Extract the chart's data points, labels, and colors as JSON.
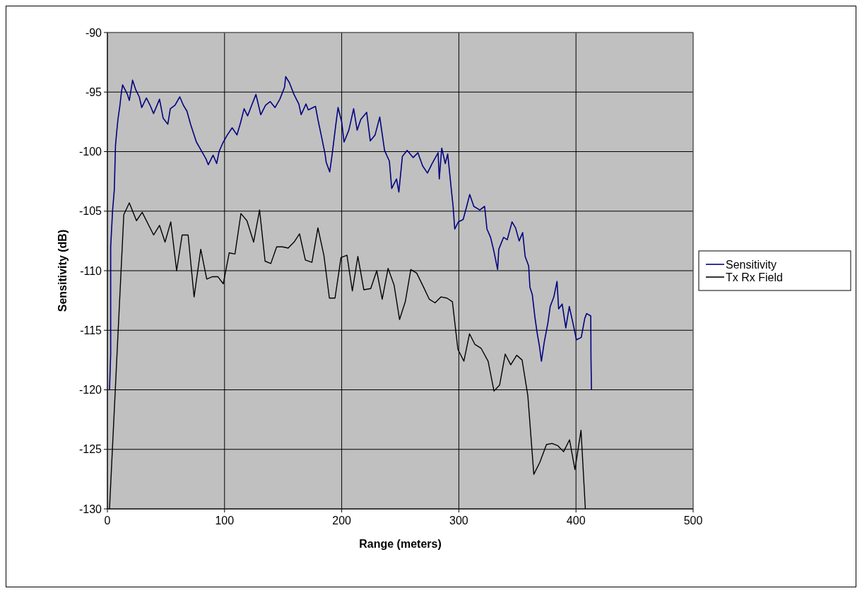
{
  "chart_data": {
    "type": "line",
    "xlabel": "Range (meters)",
    "ylabel": "Sensitivity (dB)",
    "xlim": [
      0,
      500
    ],
    "xticks": [
      0,
      100,
      200,
      300,
      400,
      500
    ],
    "ylim": [
      -130,
      -90
    ],
    "yticks": [
      -130,
      -125,
      -120,
      -115,
      -110,
      -105,
      -100,
      -95,
      -90
    ],
    "grid": true,
    "legend": "right",
    "marker": "none",
    "line_style": "solid",
    "series": [
      {
        "name": "Sensitivity",
        "color": "#000080",
        "x": [
          1.8,
          2.8,
          2.8,
          4.4,
          5.9,
          6.9,
          7.9,
          9,
          10.6,
          12,
          13,
          17.1,
          18.7,
          21.5,
          24.2,
          27.2,
          29.3,
          33.3,
          36.4,
          39.4,
          44.5,
          47.6,
          51.6,
          53.7,
          57.7,
          61.8,
          64.8,
          67.9,
          71,
          74,
          76,
          80.1,
          84.1,
          86.1,
          90.2,
          93.3,
          95.3,
          98.4,
          102.4,
          106.5,
          110.6,
          113.6,
          116.7,
          119.7,
          122.8,
          126.8,
          130.9,
          135,
          139,
          143.1,
          147.2,
          151.2,
          152.2,
          155.3,
          159.3,
          163.4,
          165.4,
          169.5,
          171.5,
          177.6,
          179.7,
          182.7,
          185.8,
          186.8,
          189.8,
          191.9,
          194.9,
          196.9,
          200,
          202,
          206.1,
          210.2,
          213.2,
          216.3,
          221.3,
          224.4,
          228.5,
          232.5,
          236.6,
          240.7,
          242.7,
          246.8,
          248.8,
          251.8,
          255.9,
          261,
          265.1,
          269.1,
          273.2,
          277.2,
          282.3,
          283.3,
          285.4,
          288.4,
          290.5,
          293.5,
          295.1,
          296.5,
          299.6,
          303.7,
          306.7,
          309.3,
          312.8,
          317.9,
          322,
          324,
          327.1,
          330,
          333.1,
          334.1,
          338.2,
          341.3,
          345.4,
          348.4,
          351.5,
          354.5,
          356.6,
          359.6,
          360.7,
          362.7,
          364.8,
          366.8,
          368.9,
          370.5,
          372.9,
          376,
          378,
          381.1,
          383.8,
          385.2,
          388.2,
          391.3,
          394.3,
          397.4,
          400.4,
          404.5,
          407.5,
          409.1,
          412.6,
          412.7,
          412.8,
          413.2
        ],
        "values": [
          -120,
          -117,
          -108,
          -105,
          -103.2,
          -99.5,
          -98.4,
          -97.3,
          -96.2,
          -95,
          -94.4,
          -95.2,
          -95.7,
          -94,
          -94.8,
          -95.4,
          -96.3,
          -95.5,
          -96.1,
          -96.8,
          -95.6,
          -97.2,
          -97.7,
          -96.4,
          -96.1,
          -95.4,
          -96.1,
          -96.6,
          -97.7,
          -98.6,
          -99.2,
          -99.9,
          -100.6,
          -101.1,
          -100.3,
          -101,
          -100,
          -99.3,
          -98.6,
          -98,
          -98.6,
          -97.6,
          -96.4,
          -97,
          -96.2,
          -95.2,
          -96.9,
          -96.1,
          -95.8,
          -96.3,
          -95.6,
          -94.6,
          -93.7,
          -94.2,
          -95.2,
          -96,
          -96.9,
          -96,
          -96.5,
          -96.2,
          -97.3,
          -98.7,
          -100.2,
          -100.9,
          -101.7,
          -100.2,
          -97.8,
          -96.3,
          -97.5,
          -99.2,
          -98.2,
          -96.4,
          -98.2,
          -97.3,
          -96.7,
          -99.1,
          -98.6,
          -97.1,
          -99.9,
          -100.8,
          -103.1,
          -102.3,
          -103.4,
          -100.4,
          -99.9,
          -100.5,
          -100.1,
          -101.2,
          -101.8,
          -101,
          -100.1,
          -102.3,
          -99.7,
          -101,
          -100.2,
          -103.1,
          -104.6,
          -106.5,
          -105.9,
          -105.7,
          -104.6,
          -103.6,
          -104.6,
          -104.9,
          -104.6,
          -106.5,
          -107.2,
          -108.4,
          -109.9,
          -108.2,
          -107.2,
          -107.4,
          -105.9,
          -106.4,
          -107.5,
          -106.8,
          -108.8,
          -109.6,
          -111.4,
          -112,
          -113.8,
          -115.2,
          -116.4,
          -117.6,
          -116,
          -114.4,
          -113,
          -112.2,
          -110.9,
          -113.2,
          -112.8,
          -114.8,
          -113,
          -114.4,
          -115.8,
          -115.6,
          -114,
          -113.6,
          -113.8,
          -115.2,
          -117.3,
          -120
        ]
      },
      {
        "name": "Tx Rx Field",
        "color": "#000000",
        "x": [
          1.8,
          14,
          18.7,
          24.8,
          29.7,
          39.5,
          44.5,
          49.2,
          54.1,
          59.1,
          63.8,
          68.9,
          74,
          79.7,
          84.8,
          89.8,
          94.3,
          98.9,
          104,
          108.9,
          114,
          119.1,
          124.8,
          129.9,
          134.6,
          139.5,
          144.5,
          149.6,
          154.3,
          159.3,
          164,
          169,
          174.6,
          179.7,
          184.8,
          189.5,
          194.3,
          199.4,
          204.5,
          209.1,
          213.8,
          218.9,
          224.8,
          229.9,
          234.6,
          239.6,
          244.7,
          249.4,
          254.3,
          259,
          264,
          269.5,
          274.8,
          279.7,
          284.8,
          289.8,
          294.5,
          299.2,
          304.3,
          309.1,
          313.8,
          318.9,
          325,
          330,
          334.8,
          339.6,
          344.3,
          349.4,
          354,
          358.9,
          364,
          369.1,
          374.8,
          379.5,
          384.6,
          389.4,
          394.5,
          399.1,
          404.3,
          408
        ],
        "values": [
          -130,
          -105.3,
          -104.3,
          -105.8,
          -105.1,
          -107,
          -106.2,
          -107.6,
          -105.9,
          -110,
          -107,
          -107,
          -112.2,
          -108.2,
          -110.7,
          -110.5,
          -110.5,
          -111.1,
          -108.5,
          -108.6,
          -105.2,
          -105.8,
          -107.6,
          -104.9,
          -109.2,
          -109.4,
          -108,
          -108,
          -108.1,
          -107.6,
          -106.9,
          -109.1,
          -109.3,
          -106.4,
          -108.7,
          -112.3,
          -112.3,
          -108.9,
          -108.7,
          -111.7,
          -108.8,
          -111.6,
          -111.5,
          -110,
          -112.4,
          -109.8,
          -111.2,
          -114.1,
          -112.6,
          -109.9,
          -110.2,
          -111.3,
          -112.4,
          -112.7,
          -112.2,
          -112.3,
          -112.6,
          -116.6,
          -117.6,
          -115.3,
          -116.2,
          -116.5,
          -117.6,
          -120.1,
          -119.6,
          -117,
          -117.9,
          -117.1,
          -117.5,
          -120.5,
          -127.1,
          -126.1,
          -124.6,
          -124.5,
          -124.7,
          -125.2,
          -124.2,
          -126.7,
          -123.4,
          -130
        ]
      }
    ]
  }
}
